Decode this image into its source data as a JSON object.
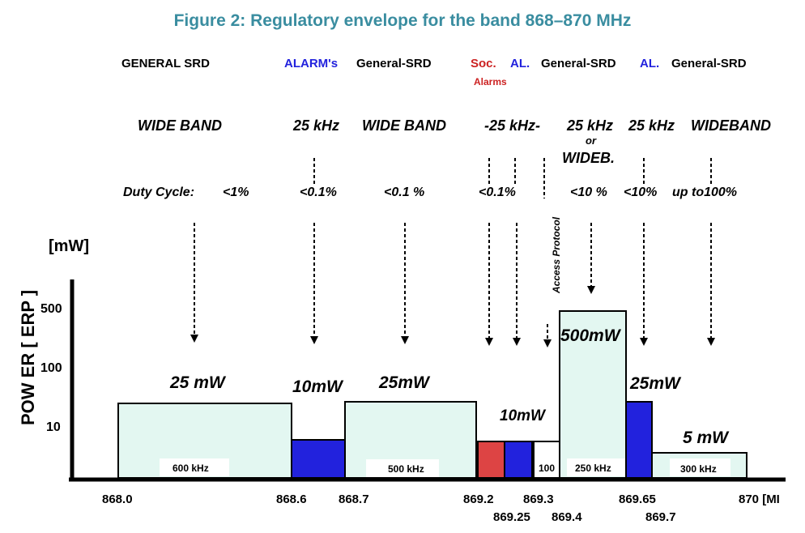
{
  "title": "Figure 2: Regulatory envelope for the band 868–870 MHz",
  "categories": {
    "general_srd": "GENERAL SRD",
    "alarms": "ALARM's",
    "general_srd_2": "General-SRD",
    "soc": "Soc.",
    "soc_alarms": "Alarms",
    "al_1": "AL.",
    "general_srd_3": "General-SRD",
    "al_2": "AL.",
    "general_srd_4": "General-SRD"
  },
  "bandwidths": {
    "b1": "WIDE BAND",
    "b2": "25 kHz",
    "b3": "WIDE BAND",
    "b4": "-25 kHz-",
    "b5": "25 kHz",
    "b5_or": "or",
    "b5_wide": "WIDEB.",
    "b6": "25 kHz",
    "b7": "WIDEBAND"
  },
  "duty_cycle": {
    "label": "Duty Cycle:",
    "d1": "<1%",
    "d2": "<0.1%",
    "d3": "<0.1 %",
    "d4": "<0.1%",
    "d5": "<10 %",
    "d6": "<10%",
    "d7": "up to100%"
  },
  "access_protocol": "Access Protocol",
  "y_axis": {
    "unit": "[mW]",
    "label": "POW ER  [ ERP ]",
    "ticks": [
      "500",
      "100",
      "10"
    ]
  },
  "power_labels": {
    "p1": "25 mW",
    "p2": "10mW",
    "p3": "25mW",
    "p4": "10mW",
    "p5": "500mW",
    "p6": "25mW",
    "p7": "5 mW"
  },
  "bandwidth_boxes": {
    "bb1": "600 kHz",
    "bb2": "500 kHz",
    "bb3": "100",
    "bb4": "250 kHz",
    "bb5": "300 kHz"
  },
  "x_axis": {
    "t1": "868.0",
    "t2": "868.6",
    "t3": "868.7",
    "t4": "869.2",
    "t5": "869.3",
    "t6": "869.25",
    "t7": "869.4",
    "t8": "869.65",
    "t9": "869.7",
    "t10": "870 [MI"
  },
  "colors": {
    "title": "#3a8da0",
    "wideband_fill": "#e3f7f1",
    "alarm_fill": "#2222dd",
    "social_alarm_fill": "#dd4444",
    "category_blue": "#2222dd",
    "category_red": "#cc2222"
  }
}
